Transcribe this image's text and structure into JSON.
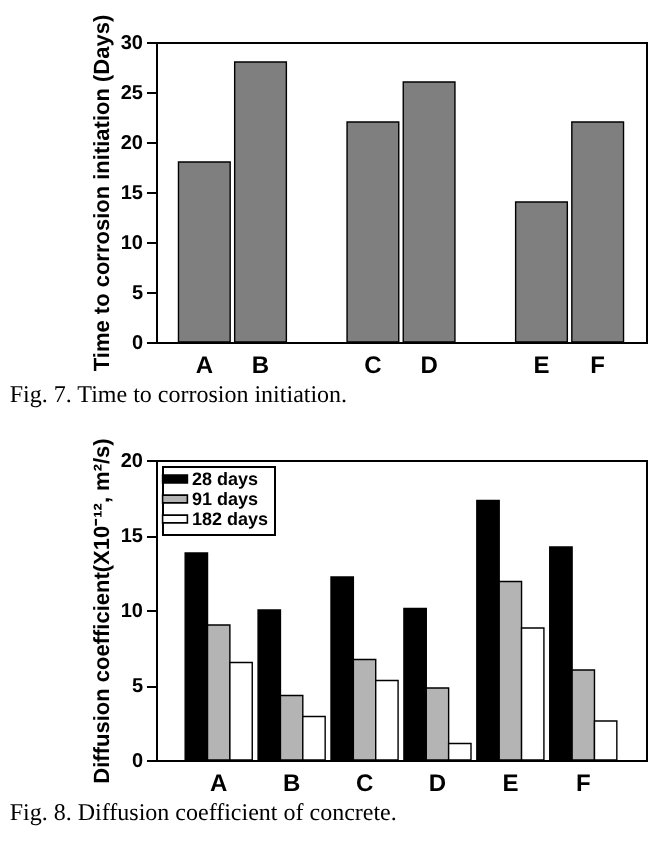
{
  "chart_data": [
    {
      "type": "bar",
      "categories": [
        "A",
        "B",
        null,
        "C",
        "D",
        null,
        "E",
        "F"
      ],
      "values": [
        18,
        28,
        null,
        22,
        26,
        null,
        14,
        22
      ],
      "color": "#7f7f7f",
      "ylabel": "Time to corrosion initiation (Days)",
      "ylim": [
        0,
        30
      ],
      "yticks": [
        0,
        5,
        10,
        15,
        20,
        25,
        30
      ],
      "grid": false,
      "legend": false,
      "annotations": [
        "Fig. 7. Time to corrosion initiation."
      ]
    },
    {
      "type": "bar",
      "categories": [
        "A",
        "B",
        "C",
        "D",
        "E",
        "F"
      ],
      "ylabel": "Diffusion coefficient(X10⁻¹², m²/s)",
      "ylim": [
        0,
        20
      ],
      "yticks": [
        0,
        5,
        10,
        15,
        20
      ],
      "grid": false,
      "legend": "top left",
      "series": [
        {
          "name": "28 days",
          "color": "#000000",
          "values": [
            13.8,
            10.0,
            12.2,
            10.1,
            17.3,
            14.2
          ]
        },
        {
          "name": "91 days",
          "color": "#b4b4b4",
          "values": [
            9.0,
            4.3,
            6.7,
            4.8,
            11.9,
            6.0
          ]
        },
        {
          "name": "182 days",
          "color": "#ffffff",
          "values": [
            6.5,
            2.9,
            5.3,
            1.1,
            8.8,
            2.6
          ]
        }
      ],
      "annotations": [
        "Fig. 8. Diffusion coefficient of concrete."
      ]
    }
  ]
}
